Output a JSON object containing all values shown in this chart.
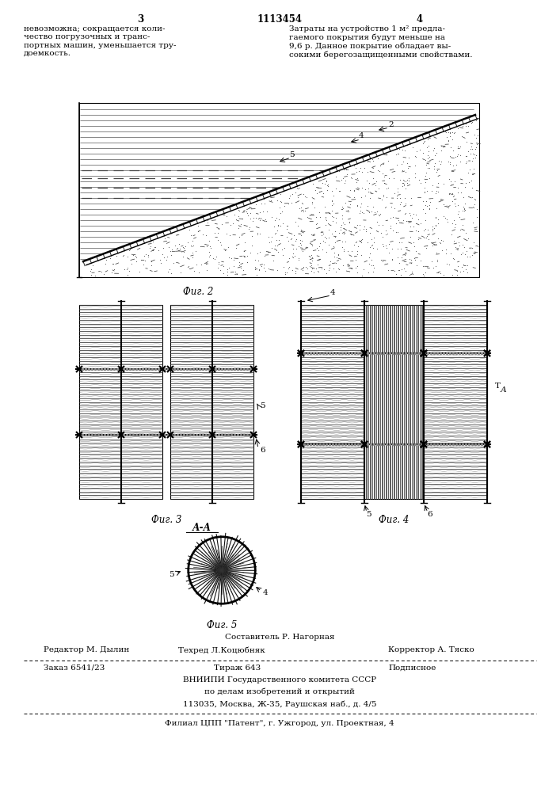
{
  "page_number_left": "3",
  "page_number_center": "1113454",
  "page_number_right": "4",
  "text_left": "невозможна; сокращается коли-\nчество погрузочных и транс-\nпортных машин, уменьшается тру-\nдоемкость.",
  "text_right": "Затраты на устройство 1 м² предла-\nгаемого покрытия будут меньше на\n9,6 р. Данное покрытие обладает вы-\nсокими берегозащищенными свойствами.",
  "fig2_label": "Фиг. 2",
  "fig3_label": "Фиг. 3",
  "fig4_label": "Фиг. 4",
  "fig5_label": "Фиг. 5",
  "fig4_section_label": "А-А",
  "footer_line1": "Составитель Р. Нагорная",
  "footer_line2_left": "Редактор М. Дылин",
  "footer_line2_mid": "Техред Л.Коцюбняк",
  "footer_line2_right": "Корректор А. Тяско",
  "footer_line3_left": "Заказ 6541/23",
  "footer_line3_mid": "Тираж 643",
  "footer_line3_right": "Подписное",
  "footer_line4": "ВНИИПИ Государственного комитета СССР",
  "footer_line5": "по делам изобретений и открытий",
  "footer_line6": "113035, Москва, Ж-35, Раушская наб., д. 4/5",
  "footer_line7": "Филиал ЦПП \"Патент\", г. Ужгород, ул. Проектная, 4",
  "bg_color": "#ffffff",
  "line_color": "#000000"
}
